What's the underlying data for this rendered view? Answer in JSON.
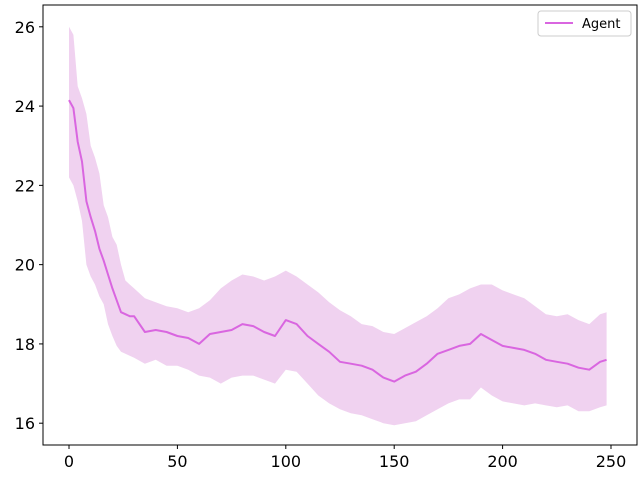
{
  "chart_data": {
    "type": "line",
    "title": "",
    "xlabel": "",
    "ylabel": "",
    "xlim": [
      -12,
      262
    ],
    "ylim": [
      15.45,
      26.55
    ],
    "xticks": [
      0,
      50,
      100,
      150,
      200,
      250
    ],
    "yticks": [
      16,
      18,
      20,
      22,
      24,
      26
    ],
    "grid": false,
    "legend_position": "top-right",
    "series": [
      {
        "name": "Agent",
        "color": "#d966e0",
        "band_color": "#f0d2f0",
        "x": [
          0,
          2,
          4,
          6,
          8,
          10,
          12,
          14,
          16,
          18,
          20,
          22,
          24,
          26,
          28,
          30,
          35,
          40,
          45,
          50,
          55,
          60,
          65,
          70,
          75,
          80,
          85,
          90,
          95,
          100,
          105,
          110,
          115,
          120,
          125,
          130,
          135,
          140,
          145,
          150,
          155,
          160,
          165,
          170,
          175,
          180,
          185,
          190,
          195,
          200,
          205,
          210,
          215,
          220,
          225,
          230,
          235,
          240,
          245,
          248
        ],
        "mean": [
          24.15,
          23.95,
          23.1,
          22.6,
          21.6,
          21.2,
          20.85,
          20.4,
          20.1,
          19.75,
          19.4,
          19.1,
          18.8,
          18.75,
          18.7,
          18.7,
          18.3,
          18.35,
          18.3,
          18.2,
          18.15,
          18.0,
          18.25,
          18.3,
          18.35,
          18.5,
          18.45,
          18.3,
          18.2,
          18.6,
          18.5,
          18.2,
          18.0,
          17.8,
          17.55,
          17.5,
          17.45,
          17.35,
          17.15,
          17.05,
          17.2,
          17.3,
          17.5,
          17.75,
          17.85,
          17.95,
          18.0,
          18.25,
          18.1,
          17.95,
          17.9,
          17.85,
          17.75,
          17.6,
          17.55,
          17.5,
          17.4,
          17.35,
          17.55,
          17.6
        ],
        "upper": [
          26.0,
          25.8,
          24.5,
          24.2,
          23.8,
          23.0,
          22.7,
          22.3,
          21.5,
          21.2,
          20.7,
          20.5,
          20.0,
          19.6,
          19.5,
          19.4,
          19.15,
          19.05,
          18.95,
          18.9,
          18.8,
          18.9,
          19.1,
          19.4,
          19.6,
          19.75,
          19.7,
          19.6,
          19.7,
          19.85,
          19.7,
          19.5,
          19.3,
          19.05,
          18.85,
          18.7,
          18.5,
          18.45,
          18.3,
          18.25,
          18.4,
          18.55,
          18.7,
          18.9,
          19.15,
          19.25,
          19.4,
          19.5,
          19.5,
          19.35,
          19.25,
          19.15,
          18.95,
          18.75,
          18.7,
          18.75,
          18.6,
          18.5,
          18.75,
          18.8
        ],
        "lower": [
          22.2,
          22.0,
          21.6,
          21.1,
          20.0,
          19.7,
          19.5,
          19.2,
          19.0,
          18.5,
          18.2,
          17.95,
          17.8,
          17.75,
          17.7,
          17.65,
          17.5,
          17.6,
          17.45,
          17.45,
          17.35,
          17.2,
          17.15,
          17.0,
          17.15,
          17.2,
          17.2,
          17.1,
          17.0,
          17.35,
          17.3,
          17.0,
          16.7,
          16.5,
          16.35,
          16.25,
          16.2,
          16.1,
          16.0,
          15.95,
          16.0,
          16.05,
          16.2,
          16.35,
          16.5,
          16.6,
          16.6,
          16.9,
          16.7,
          16.55,
          16.5,
          16.45,
          16.5,
          16.45,
          16.4,
          16.45,
          16.3,
          16.3,
          16.4,
          16.45
        ]
      }
    ]
  }
}
